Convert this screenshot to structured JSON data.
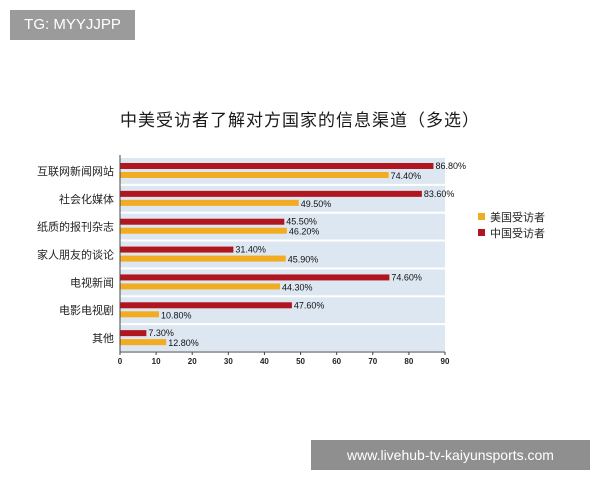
{
  "watermarks": {
    "top_left": "TG: MYYJJPP",
    "bottom_right": "www.livehub-tv-kaiyunsports.com"
  },
  "chart_data": {
    "type": "bar",
    "orientation": "horizontal",
    "title": "中美受访者了解对方国家的信息渠道（多选）",
    "categories": [
      "互联网新闻网站",
      "社会化媒体",
      "纸质的报刊杂志",
      "家人朋友的谈论",
      "电视新闻",
      "电影电视剧",
      "其他"
    ],
    "series": [
      {
        "name": "中国受访者",
        "color": "#b0161f",
        "values": [
          86.8,
          83.6,
          45.5,
          31.4,
          74.6,
          47.6,
          7.3
        ],
        "labels": [
          "86.80%",
          "83.60%",
          "45.50%",
          "31.40%",
          "74.60%",
          "47.60%",
          "7.30%"
        ]
      },
      {
        "name": "美国受访者",
        "color": "#f2ac22",
        "values": [
          74.4,
          49.5,
          46.2,
          45.9,
          44.3,
          10.8,
          12.8
        ],
        "labels": [
          "74.40%",
          "49.50%",
          "46.20%",
          "45.90%",
          "44.30%",
          "10.80%",
          "12.80%"
        ]
      }
    ],
    "xlim": [
      0,
      90
    ],
    "xticks": [
      "0",
      "10",
      "20",
      "30",
      "40",
      "50",
      "60",
      "70",
      "80",
      "90"
    ],
    "legend": {
      "position": "right",
      "order": [
        "美国受访者",
        "中国受访者"
      ]
    },
    "band_color": "#dde7f2"
  }
}
